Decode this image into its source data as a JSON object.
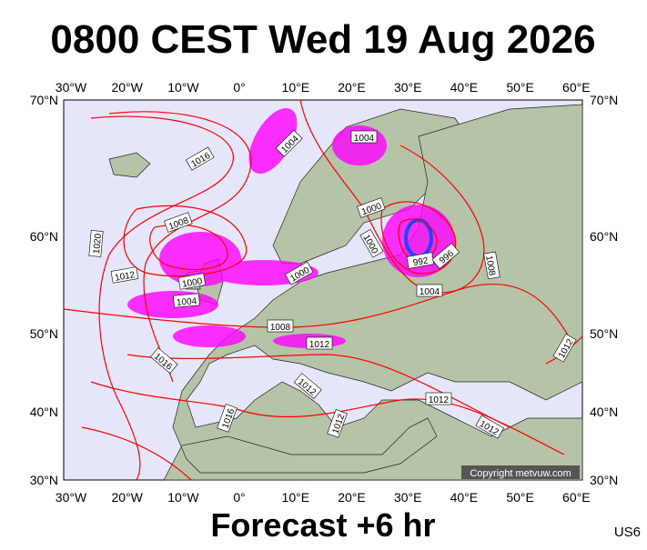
{
  "header": {
    "title": "0800 CEST Wed 19 Aug 2026"
  },
  "map": {
    "lon_labels": [
      "30°W",
      "20°W",
      "10°W",
      "0°",
      "10°E",
      "20°E",
      "30°E",
      "40°E",
      "50°E",
      "60°E"
    ],
    "lat_labels": [
      "70°N",
      "60°N",
      "50°N",
      "40°N",
      "30°N"
    ],
    "isobar_labels": [
      1016,
      1004,
      1004,
      1008,
      1020,
      1012,
      1000,
      1004,
      1000,
      1000,
      1000,
      992,
      996,
      1008,
      1004,
      1008,
      1012,
      1016,
      1012,
      1016,
      1012,
      1012,
      1012,
      1012
    ],
    "copyright": "Copyright metvuw.com"
  },
  "footer": {
    "forecast": "Forecast +6 hr",
    "code": "US6"
  }
}
